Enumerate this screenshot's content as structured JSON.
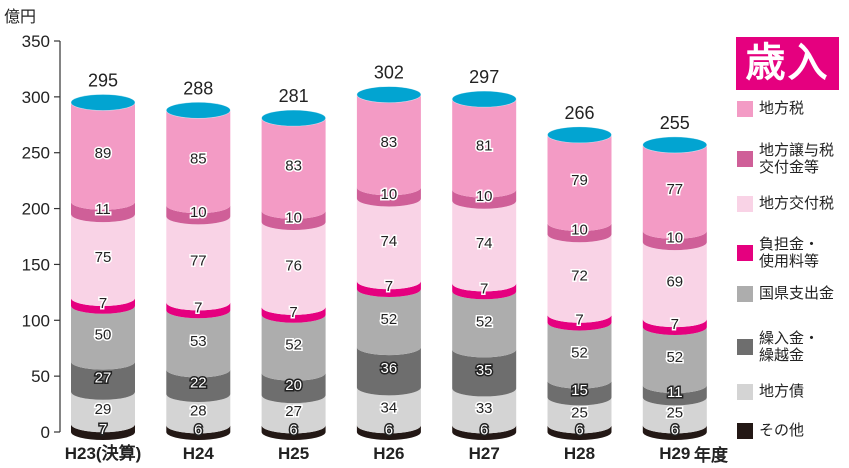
{
  "chart_data": {
    "type": "bar",
    "title": "歳入",
    "ylabel": "億円",
    "xlabel": "年度",
    "ylim": [
      0,
      350
    ],
    "yticks": [
      0,
      50,
      100,
      150,
      200,
      250,
      300,
      350
    ],
    "categories": [
      "H23(決算)",
      "H24",
      "H25",
      "H26",
      "H27",
      "H28",
      "H29"
    ],
    "totals": [
      295,
      288,
      281,
      302,
      297,
      266,
      255
    ],
    "series": [
      {
        "name": "その他",
        "color": "#231815",
        "values": [
          7,
          6,
          6,
          6,
          6,
          6,
          6
        ]
      },
      {
        "name": "地方債",
        "color": "#d4d4d4",
        "values": [
          29,
          28,
          27,
          34,
          33,
          25,
          25
        ]
      },
      {
        "name": "繰入金・\n繰越金",
        "color": "#6e6e6e",
        "values": [
          27,
          22,
          20,
          36,
          35,
          15,
          11
        ]
      },
      {
        "name": "国県支出金",
        "color": "#adadad",
        "values": [
          50,
          53,
          52,
          52,
          52,
          52,
          52
        ]
      },
      {
        "name": "負担金・\n使用料等",
        "color": "#e5007f",
        "values": [
          7,
          7,
          7,
          7,
          7,
          7,
          7
        ]
      },
      {
        "name": "地方交付税",
        "color": "#f9d3e6",
        "values": [
          75,
          77,
          76,
          74,
          74,
          72,
          69
        ]
      },
      {
        "name": "地方譲与税\n交付金等",
        "color": "#cf5f98",
        "values": [
          11,
          10,
          10,
          10,
          10,
          10,
          10
        ]
      },
      {
        "name": "地方税",
        "color": "#f39bc5",
        "values": [
          89,
          85,
          83,
          83,
          81,
          79,
          77
        ]
      }
    ]
  }
}
